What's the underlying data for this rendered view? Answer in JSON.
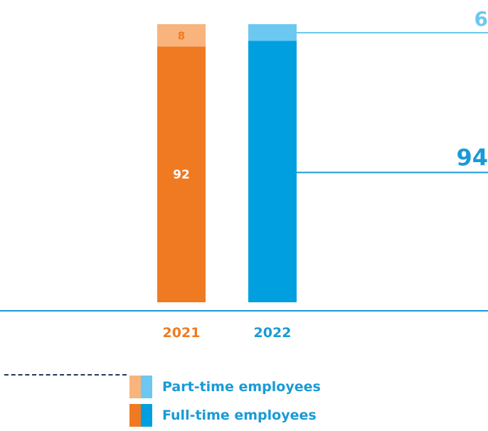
{
  "chart_data": {
    "type": "bar",
    "stacked": true,
    "categories": [
      "2021",
      "2022"
    ],
    "series": [
      {
        "name": "Full-time employees",
        "values": [
          92,
          94
        ],
        "colors": [
          "#f07a22",
          "#00a0e0"
        ]
      },
      {
        "name": "Part-time employees",
        "values": [
          8,
          6
        ],
        "colors": [
          "#f8b47c",
          "#6cc8f0"
        ]
      }
    ],
    "data_labels": {
      "2021": {
        "Part-time employees": "8",
        "Full-time employees": "92"
      },
      "2022": {
        "Part-time employees": "6",
        "Full-time employees": "94"
      }
    },
    "category_colors": {
      "2021": "#f07a22",
      "2022": "#1a9ad6"
    },
    "ylim": [
      0,
      100
    ],
    "grid": false,
    "legend_position": "bottom"
  }
}
